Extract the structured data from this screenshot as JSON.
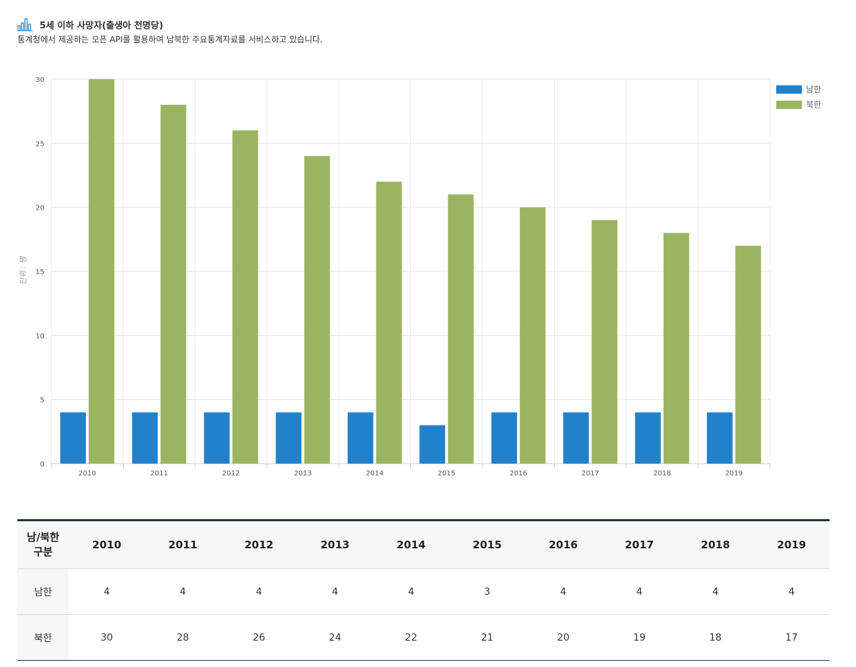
{
  "header": {
    "title": "5세 이하 사망자(출생아 천명당)",
    "subtitle": "통계청에서 제공하는 오픈 API를 활용하여 남북한 주요통계자료를 서비스하고 있습니다."
  },
  "chart_data": {
    "type": "bar",
    "categories": [
      "2010",
      "2011",
      "2012",
      "2013",
      "2014",
      "2015",
      "2016",
      "2017",
      "2018",
      "2019"
    ],
    "series": [
      {
        "name": "남한",
        "color": "#2381cc",
        "values": [
          4,
          4,
          4,
          4,
          4,
          3,
          4,
          4,
          4,
          4
        ]
      },
      {
        "name": "북한",
        "color": "#99b562",
        "values": [
          30,
          28,
          26,
          24,
          22,
          21,
          20,
          19,
          18,
          17
        ]
      }
    ],
    "ylabel": "단위 : 명",
    "ylim": [
      0,
      30
    ],
    "yticks": [
      0,
      5,
      10,
      15,
      20,
      25,
      30
    ],
    "grid": true,
    "legend": "top-right"
  },
  "table": {
    "corner_line1": "남/북한",
    "corner_line2": "구분",
    "years": [
      "2010",
      "2011",
      "2012",
      "2013",
      "2014",
      "2015",
      "2016",
      "2017",
      "2018",
      "2019"
    ],
    "rows": [
      {
        "label": "남한",
        "values": [
          "4",
          "4",
          "4",
          "4",
          "4",
          "3",
          "4",
          "4",
          "4",
          "4"
        ]
      },
      {
        "label": "북한",
        "values": [
          "30",
          "28",
          "26",
          "24",
          "22",
          "21",
          "20",
          "19",
          "18",
          "17"
        ]
      }
    ]
  }
}
